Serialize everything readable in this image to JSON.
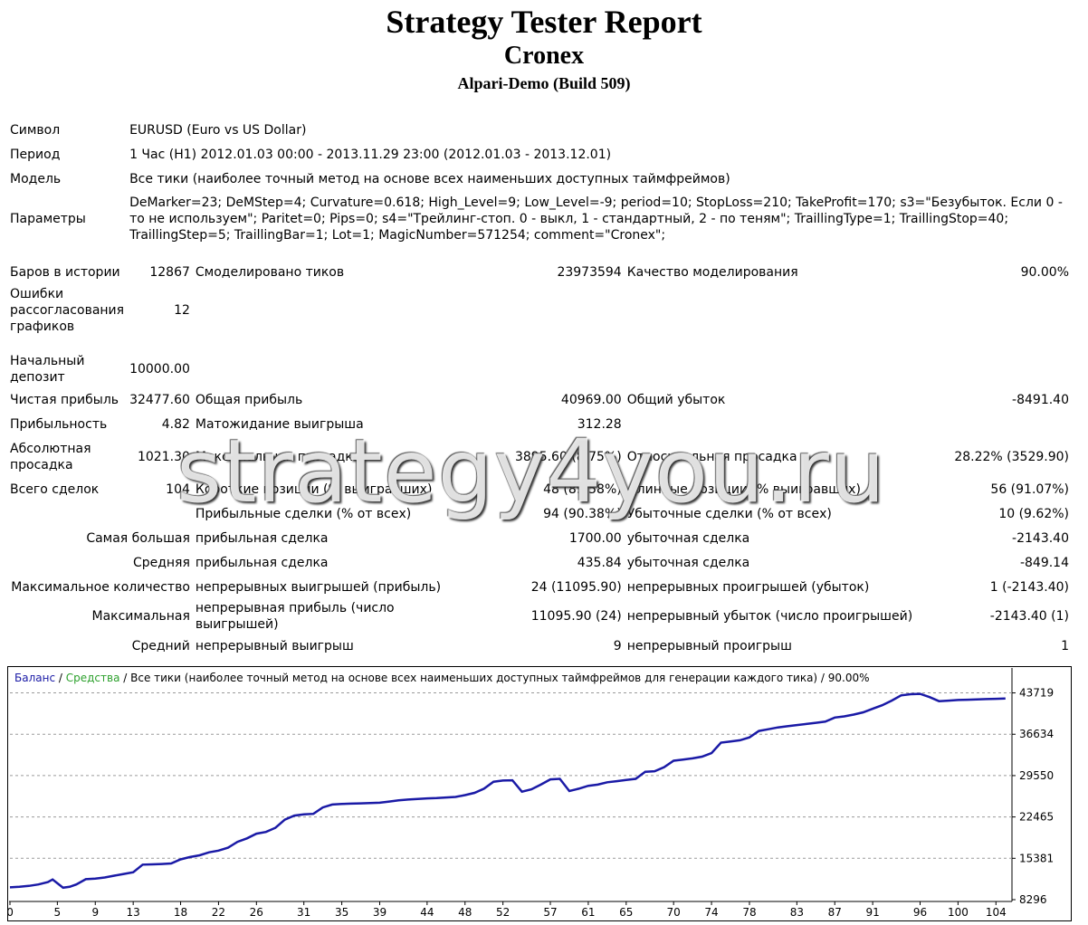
{
  "header": {
    "title": "Strategy Tester Report",
    "subtitle": "Cronex",
    "server": "Alpari-Demo (Build 509)"
  },
  "info": {
    "symbol_label": "Символ",
    "symbol_value": "EURUSD (Euro vs US Dollar)",
    "period_label": "Период",
    "period_value": "1 Час (H1) 2012.01.03 00:00 - 2013.11.29 23:00 (2012.01.03 - 2013.12.01)",
    "model_label": "Модель",
    "model_value": "Все тики (наиболее точный метод на основе всех наименьших доступных таймфреймов)",
    "params_label": "Параметры",
    "params_value": "DeMarker=23; DeMStep=4; Curvature=0.618; High_Level=9; Low_Level=-9; period=10; StopLoss=210; TakeProfit=170; s3=\"Безубыток. Если 0 - то не используем\"; Paritet=0; Pips=0; s4=\"Трейлинг-стоп. 0 - выкл, 1 - стандартный, 2 - по теням\"; TraillingType=1; TraillingStop=40; TraillingStep=5; TraillingBar=1; Lot=1; MagicNumber=571254; comment=\"Cronex\";"
  },
  "stats": {
    "bars_label": "Баров в истории",
    "bars_value": "12867",
    "ticks_label": "Смоделировано тиков",
    "ticks_value": "23973594",
    "quality_label": "Качество моделирования",
    "quality_value": "90.00%",
    "errors_label": "Ошибки рассогласования графиков",
    "errors_value": "12",
    "deposit_label": "Начальный депозит",
    "deposit_value": "10000.00",
    "net_label": "Чистая прибыль",
    "net_value": "32477.60",
    "gross_profit_label": "Общая прибыль",
    "gross_profit_value": "40969.00",
    "gross_loss_label": "Общий убыток",
    "gross_loss_value": "-8491.40",
    "pf_label": "Прибыльность",
    "pf_value": "4.82",
    "expected_label": "Матожидание выигрыша",
    "expected_value": "312.28",
    "abs_dd_label": "Абсолютная просадка",
    "abs_dd_value": "1021.30",
    "max_dd_label": "Максимальная просадка",
    "max_dd_value": "3895.60 (8.75%)",
    "rel_dd_label": "Относительная просадка",
    "rel_dd_value": "28.22% (3529.90)",
    "trades_label": "Всего сделок",
    "trades_value": "104",
    "short_label": "Короткие позиции (% выигравших)",
    "short_value": "48 (89.58%)",
    "long_label": "Длинные позиции (% выигравших)",
    "long_value": "56 (91.07%)",
    "profit_trades_label": "Прибыльные сделки (% от всех)",
    "profit_trades_value": "94 (90.38%)",
    "loss_trades_label": "Убыточные сделки (% от всех)",
    "loss_trades_value": "10 (9.62%)",
    "largest_label": "Самая большая",
    "largest_profit_label": "прибыльная сделка",
    "largest_profit_value": "1700.00",
    "largest_loss_label": "убыточная сделка",
    "largest_loss_value": "-2143.40",
    "average_label": "Средняя",
    "avg_profit_label": "прибыльная сделка",
    "avg_profit_value": "435.84",
    "avg_loss_label": "убыточная сделка",
    "avg_loss_value": "-849.14",
    "max_count_label": "Максимальное количество",
    "max_cons_wins_label": "непрерывных выигрышей (прибыль)",
    "max_cons_wins_value": "24 (11095.90)",
    "max_cons_losses_label": "непрерывных проигрышей (убыток)",
    "max_cons_losses_value": "1 (-2143.40)",
    "maximal_label": "Максимальная",
    "maximal_profit_label": "непрерывная прибыль (число выигрышей)",
    "maximal_profit_value": "11095.90 (24)",
    "maximal_loss_label": "непрерывный убыток (число проигрышей)",
    "maximal_loss_value": "-2143.40 (1)",
    "avg_cons_label": "Средний",
    "avg_cons_wins_label": "непрерывный выигрыш",
    "avg_cons_wins_value": "9",
    "avg_cons_losses_label": "непрерывный проигрыш",
    "avg_cons_losses_value": "1"
  },
  "watermark": "strategy4you.ru",
  "colors": {
    "balance": "#1a1aa6",
    "equity": "#2ca02c",
    "grid": "#9a9a9a",
    "border": "#000000"
  },
  "chart_data": {
    "type": "line",
    "legend": {
      "balance": "Баланс",
      "sep1": " / ",
      "equity": "Средства",
      "rest": " / Все тики (наиболее точный метод на основе всех наименьших доступных таймфреймов для генерации каждого тика) / 90.00%"
    },
    "x_ticks": [
      0,
      5,
      9,
      13,
      18,
      22,
      26,
      31,
      35,
      39,
      44,
      48,
      52,
      57,
      61,
      65,
      70,
      74,
      78,
      83,
      87,
      91,
      96,
      100,
      104
    ],
    "y_ticks": [
      8296,
      15381,
      22465,
      29550,
      36634,
      43719
    ],
    "xlim": [
      0,
      105.5
    ],
    "ylim": [
      8296,
      45200
    ],
    "series": [
      {
        "name": "Баланс",
        "x": [
          0,
          1,
          2,
          3,
          4,
          4.5,
          5,
          5.6,
          6.3,
          7,
          8,
          9,
          10,
          11,
          12,
          13,
          14,
          15,
          16,
          17,
          18,
          19,
          20,
          21,
          22,
          23,
          24,
          25,
          26,
          27,
          28,
          29,
          30,
          31,
          32,
          33,
          34,
          35,
          36,
          37,
          38,
          39,
          40,
          41,
          42,
          43,
          44,
          45,
          46,
          47,
          48,
          49,
          50,
          51,
          52,
          53,
          54,
          55,
          56,
          57,
          58,
          59,
          60,
          61,
          62,
          63,
          64,
          65,
          66,
          67,
          68,
          69,
          70,
          71,
          72,
          73,
          74,
          75,
          76,
          77,
          78,
          79,
          80,
          81,
          82,
          83,
          84,
          85,
          86,
          87,
          88,
          89,
          90,
          91,
          92,
          93,
          94,
          95,
          96,
          97,
          98,
          99,
          100,
          101,
          102,
          103,
          104,
          105
        ],
        "y": [
          10400,
          10500,
          10650,
          10900,
          11300,
          11750,
          11100,
          10350,
          10500,
          10900,
          11800,
          11900,
          12100,
          12400,
          12700,
          13000,
          14300,
          14350,
          14400,
          14500,
          15200,
          15600,
          15900,
          16400,
          16700,
          17200,
          18200,
          18800,
          19600,
          19900,
          20600,
          22000,
          22700,
          22900,
          23000,
          24100,
          24600,
          24700,
          24750,
          24800,
          24850,
          24900,
          25100,
          25300,
          25450,
          25550,
          25650,
          25700,
          25800,
          25900,
          26200,
          26600,
          27300,
          28500,
          28700,
          28750,
          26800,
          27200,
          28000,
          28900,
          29000,
          26900,
          27300,
          27800,
          28000,
          28400,
          28600,
          28800,
          29000,
          30200,
          30300,
          31000,
          32100,
          32300,
          32500,
          32800,
          33400,
          35200,
          35400,
          35600,
          36100,
          37200,
          37500,
          37800,
          38000,
          38200,
          38400,
          38600,
          38800,
          39500,
          39700,
          40000,
          40400,
          41000,
          41600,
          42400,
          43300,
          43500,
          43550,
          43000,
          42300,
          42400,
          42500,
          42550,
          42600,
          42650,
          42700,
          42750
        ]
      }
    ]
  }
}
